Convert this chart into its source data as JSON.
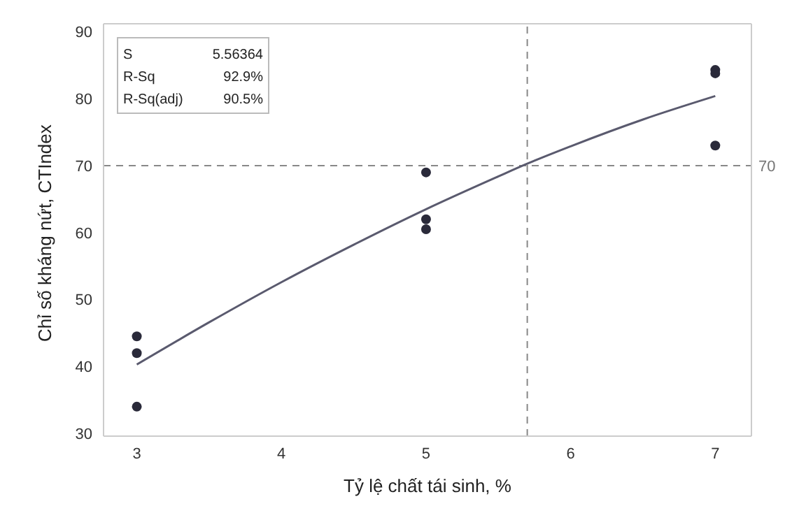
{
  "chart_data": {
    "type": "scatter",
    "xlabel": "Tỷ lệ chất tái sinh, %",
    "ylabel": "Chỉ số kháng nứt, CTIndex",
    "xlim": [
      2.77,
      7.25
    ],
    "xticks": [
      3,
      4,
      5,
      6,
      7
    ],
    "ylim": [
      29.6,
      91.2
    ],
    "yticks": [
      30,
      40,
      50,
      60,
      70,
      80,
      90
    ],
    "series": [
      {
        "color": "#2a2a3a",
        "marker": "circle",
        "x": [
          3,
          3,
          3,
          5,
          5,
          5,
          7,
          7,
          7
        ],
        "values": [
          44.5,
          42,
          34,
          69,
          62,
          60.5,
          84.3,
          83.8,
          73
        ]
      },
      {
        "type": "line",
        "color": "#5a5a6e",
        "x": [
          3,
          3.5,
          4,
          4.5,
          5,
          5.5,
          5.7,
          6,
          6.5,
          7
        ],
        "values": [
          40.3,
          46.6,
          52.6,
          58.2,
          63.5,
          68.4,
          70.3,
          72.9,
          76.9,
          80.4
        ]
      }
    ],
    "ref_lines": [
      {
        "axis": "x",
        "value": 5.7,
        "label": null,
        "color": "#888888",
        "line_style": "dashed"
      },
      {
        "axis": "y",
        "value": 70,
        "label": "70",
        "color": "#888888",
        "line_style": "dashed"
      }
    ],
    "annotations": [
      "S",
      "5.56364",
      "R-Sq",
      "92.9%",
      "R-Sq(adj)",
      "90.5%"
    ]
  }
}
